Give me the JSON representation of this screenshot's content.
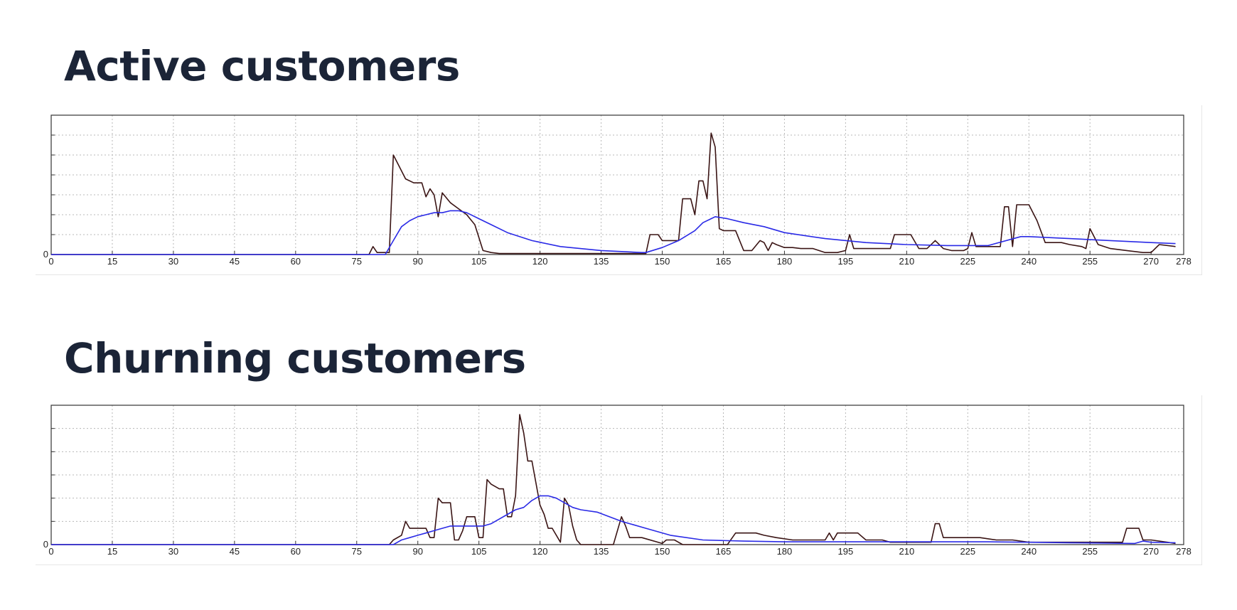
{
  "headings": {
    "active": "Active customers",
    "churning": "Churning customers"
  },
  "chart_data": [
    {
      "type": "line",
      "title": "Active customers",
      "xlabel": "",
      "ylabel": "",
      "xlim": [
        0,
        278
      ],
      "ylim": [
        0,
        7
      ],
      "x_ticks": [
        "0",
        "15",
        "30",
        "45",
        "60",
        "75",
        "90",
        "105",
        "120",
        "135",
        "150",
        "165",
        "180",
        "195",
        "210",
        "225",
        "240",
        "255",
        "270",
        "278"
      ],
      "y_tick_labels": [
        "0"
      ],
      "grid": true,
      "colors": {
        "raw": "#3a1414",
        "smoothed": "#2a2ae6"
      },
      "series": [
        {
          "x": [
            0,
            78,
            79,
            80,
            83,
            84,
            85,
            87,
            89,
            91,
            92,
            93,
            94,
            95,
            96,
            98,
            100,
            102,
            104,
            106,
            108,
            110,
            115,
            120,
            125,
            130,
            135,
            140,
            145,
            146,
            147,
            149,
            150,
            151,
            154,
            155,
            156,
            157,
            158,
            159,
            160,
            161,
            162,
            163,
            164,
            165,
            168,
            170,
            172,
            174,
            175,
            176,
            177,
            178,
            180,
            182,
            184,
            187,
            190,
            193,
            195,
            196,
            197,
            199,
            201,
            203,
            206,
            207,
            209,
            211,
            213,
            215,
            217,
            219,
            221,
            224,
            225,
            226,
            227,
            229,
            231,
            233,
            234,
            235,
            236,
            237,
            239,
            240,
            242,
            244,
            246,
            248,
            250,
            253,
            254,
            255,
            257,
            260,
            264,
            268,
            270,
            272,
            276
          ],
          "y": [
            0,
            0,
            0.4,
            0.1,
            0.1,
            5,
            4.6,
            3.8,
            3.6,
            3.6,
            2.9,
            3.3,
            3.0,
            1.9,
            3.1,
            2.6,
            2.3,
            2.0,
            1.5,
            0.2,
            0.1,
            0.05,
            0.05,
            0.05,
            0.05,
            0.05,
            0.05,
            0.05,
            0.05,
            0.05,
            1.0,
            1.0,
            0.7,
            0.7,
            0.7,
            2.8,
            2.8,
            2.8,
            2.0,
            3.7,
            3.7,
            2.8,
            6.1,
            5.4,
            1.3,
            1.2,
            1.2,
            0.2,
            0.2,
            0.7,
            0.6,
            0.2,
            0.6,
            0.5,
            0.35,
            0.35,
            0.3,
            0.3,
            0.1,
            0.1,
            0.2,
            1.0,
            0.3,
            0.3,
            0.3,
            0.3,
            0.3,
            1.0,
            1.0,
            1.0,
            0.3,
            0.3,
            0.7,
            0.3,
            0.2,
            0.2,
            0.3,
            1.1,
            0.4,
            0.4,
            0.4,
            0.4,
            2.4,
            2.4,
            0.4,
            2.5,
            2.5,
            2.5,
            1.7,
            0.6,
            0.6,
            0.6,
            0.5,
            0.4,
            0.3,
            1.3,
            0.5,
            0.3,
            0.2,
            0.1,
            0.1,
            0.5,
            0.4
          ]
        },
        {
          "x": [
            0,
            82,
            84,
            86,
            88,
            90,
            92,
            94,
            96,
            98,
            100,
            102,
            105,
            108,
            112,
            118,
            125,
            135,
            145,
            146,
            150,
            154,
            158,
            160,
            162,
            163,
            166,
            170,
            175,
            180,
            190,
            200,
            210,
            220,
            230,
            238,
            240,
            250,
            260,
            270,
            276
          ],
          "y": [
            0,
            0,
            0.7,
            1.4,
            1.7,
            1.9,
            2.0,
            2.1,
            2.1,
            2.2,
            2.2,
            2.1,
            1.8,
            1.5,
            1.1,
            0.7,
            0.4,
            0.2,
            0.1,
            0.1,
            0.35,
            0.7,
            1.2,
            1.6,
            1.8,
            1.9,
            1.8,
            1.6,
            1.4,
            1.1,
            0.8,
            0.6,
            0.5,
            0.45,
            0.45,
            0.9,
            0.9,
            0.8,
            0.7,
            0.6,
            0.55
          ]
        }
      ]
    },
    {
      "type": "line",
      "title": "Churning customers",
      "xlabel": "",
      "ylabel": "",
      "xlim": [
        0,
        278
      ],
      "ylim": [
        0,
        6
      ],
      "x_ticks": [
        "0",
        "15",
        "30",
        "45",
        "60",
        "75",
        "90",
        "105",
        "120",
        "135",
        "150",
        "165",
        "180",
        "195",
        "210",
        "225",
        "240",
        "255",
        "270",
        "278"
      ],
      "y_tick_labels": [
        "0"
      ],
      "grid": true,
      "colors": {
        "raw": "#3a1414",
        "smoothed": "#2a2ae6"
      },
      "series": [
        {
          "x": [
            0,
            83,
            84,
            86,
            87,
            88,
            90,
            92,
            93,
            94,
            95,
            96,
            97,
            98,
            99,
            100,
            101,
            102,
            104,
            105,
            106,
            107,
            108,
            110,
            111,
            112,
            113,
            114,
            115,
            116,
            117,
            118,
            120,
            121,
            122,
            123,
            125,
            126,
            127,
            128,
            129,
            130,
            135,
            138,
            140,
            141,
            142,
            145,
            150,
            151,
            152,
            153,
            155,
            160,
            162,
            166,
            168,
            170,
            173,
            175,
            178,
            182,
            186,
            190,
            191,
            192,
            193,
            196,
            198,
            200,
            204,
            206,
            210,
            214,
            216,
            217,
            218,
            219,
            220,
            224,
            228,
            232,
            236,
            240,
            244,
            248,
            250,
            256,
            260,
            263,
            264,
            265,
            267,
            268,
            270,
            274,
            276
          ],
          "y": [
            0,
            0,
            0.2,
            0.4,
            1.0,
            0.7,
            0.7,
            0.7,
            0.3,
            0.3,
            2.0,
            1.8,
            1.8,
            1.8,
            0.2,
            0.2,
            0.6,
            1.2,
            1.2,
            0.3,
            0.3,
            2.8,
            2.6,
            2.4,
            2.4,
            1.2,
            1.2,
            2.1,
            5.6,
            4.8,
            3.6,
            3.6,
            1.7,
            1.3,
            0.7,
            0.7,
            0.1,
            2.0,
            1.7,
            0.8,
            0.2,
            0,
            0,
            0,
            1.2,
            0.8,
            0.3,
            0.3,
            0.05,
            0.2,
            0.2,
            0.2,
            0,
            0,
            0,
            0,
            0.5,
            0.5,
            0.5,
            0.4,
            0.3,
            0.2,
            0.2,
            0.2,
            0.5,
            0.2,
            0.5,
            0.5,
            0.5,
            0.2,
            0.2,
            0.1,
            0.1,
            0.1,
            0.1,
            0.9,
            0.9,
            0.3,
            0.3,
            0.3,
            0.3,
            0.2,
            0.2,
            0.1,
            0.1,
            0.1,
            0.1,
            0.1,
            0.1,
            0.1,
            0.7,
            0.7,
            0.7,
            0.2,
            0.2,
            0.1,
            0.05
          ]
        },
        {
          "x": [
            0,
            84,
            86,
            88,
            90,
            92,
            94,
            96,
            98,
            100,
            102,
            104,
            106,
            108,
            110,
            112,
            114,
            116,
            118,
            120,
            122,
            124,
            126,
            128,
            130,
            134,
            140,
            146,
            152,
            160,
            170,
            180,
            190,
            200,
            210,
            220,
            230,
            240,
            250,
            260,
            266,
            268,
            270,
            276
          ],
          "y": [
            0,
            0,
            0.2,
            0.3,
            0.4,
            0.5,
            0.6,
            0.7,
            0.8,
            0.8,
            0.8,
            0.8,
            0.8,
            0.9,
            1.1,
            1.3,
            1.5,
            1.6,
            1.9,
            2.1,
            2.1,
            2.0,
            1.8,
            1.6,
            1.5,
            1.4,
            1.0,
            0.7,
            0.4,
            0.2,
            0.15,
            0.12,
            0.12,
            0.12,
            0.12,
            0.12,
            0.12,
            0.1,
            0.08,
            0.06,
            0.05,
            0.15,
            0.1,
            0.08
          ]
        }
      ]
    }
  ]
}
